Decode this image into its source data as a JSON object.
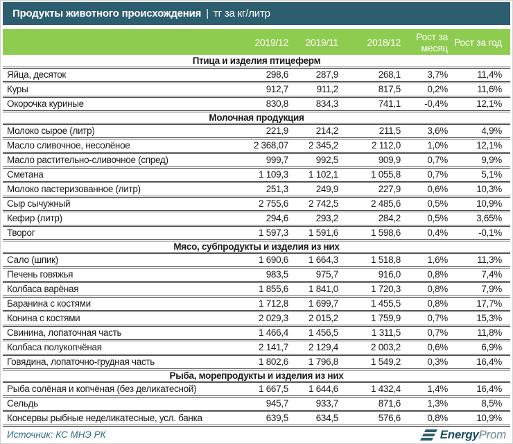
{
  "title": {
    "main": "Продукты животного происхождения",
    "separator": "|",
    "unit": "тг за кг/литр"
  },
  "colors": {
    "header_teal": "#2d5e6f",
    "header_green": "#8ecc4f",
    "row_border": "#4d4d4d",
    "source_text": "#2e6e88"
  },
  "footer": {
    "source": "Источник: КС МНЭ РК",
    "logo_icon": "energyprom-e-icon",
    "logo_bold": "Energy",
    "logo_light": "Prom"
  },
  "chart_data": {
    "type": "table",
    "title": "Продукты животного происхождения | тг за кг/литр",
    "columns": [
      "2019/12",
      "2019/11",
      "2018/12",
      "Рост за месяц",
      "Рост за год"
    ],
    "sections": [
      {
        "title": "Птица и изделия птицеферм",
        "rows": [
          {
            "name": "Яйца, десяток",
            "values": [
              "298,6",
              "287,9",
              "268,1",
              "3,7%",
              "11,4%"
            ]
          },
          {
            "name": "Куры",
            "values": [
              "912,7",
              "911,2",
              "817,5",
              "0,2%",
              "11,6%"
            ]
          },
          {
            "name": "Окорочка куриные",
            "values": [
              "830,8",
              "834,3",
              "741,1",
              "-0,4%",
              "12,1%"
            ]
          }
        ]
      },
      {
        "title": "Молочная продукция",
        "rows": [
          {
            "name": "Молоко сырое (литр)",
            "values": [
              "221,9",
              "214,2",
              "211,5",
              "3,6%",
              "4,9%"
            ]
          },
          {
            "name": "Масло сливочное, несолёное",
            "values": [
              "2 368,07",
              "2 345,2",
              "2 112,0",
              "1,0%",
              "12,1%"
            ]
          },
          {
            "name": "Масло растительно-сливочное (спред)",
            "values": [
              "999,7",
              "992,5",
              "909,9",
              "0,7%",
              "9,9%"
            ]
          },
          {
            "name": "Сметана",
            "values": [
              "1 109,3",
              "1 102,1",
              "1 055,8",
              "0,7%",
              "5,1%"
            ]
          },
          {
            "name": "Молоко пастеризованное (литр)",
            "values": [
              "251,3",
              "249,9",
              "227,9",
              "0,6%",
              "10,3%"
            ]
          },
          {
            "name": "Сыр сычужный",
            "values": [
              "2 755,6",
              "2 742,5",
              "2 485,6",
              "0,5%",
              "10,9%"
            ]
          },
          {
            "name": "Кефир (литр)",
            "values": [
              "294,6",
              "293,2",
              "284,2",
              "0,5%",
              "3,65%"
            ]
          },
          {
            "name": "Творог",
            "values": [
              "1 597,3",
              "1 591,6",
              "1 598,6",
              "0,4%",
              "-0,1%"
            ]
          }
        ]
      },
      {
        "title": "Мясо, субпродукты и изделия из них",
        "rows": [
          {
            "name": "Сало (шпик)",
            "values": [
              "1 690,6",
              "1 664,3",
              "1 518,8",
              "1,6%",
              "11,3%"
            ]
          },
          {
            "name": "Печень говяжья",
            "values": [
              "983,5",
              "975,7",
              "916,0",
              "0,8%",
              "7,4%"
            ]
          },
          {
            "name": "Колбаса варёная",
            "values": [
              "1 855,6",
              "1 841,0",
              "1 720,3",
              "0,8%",
              "7,9%"
            ]
          },
          {
            "name": "Баранина с костями",
            "values": [
              "1 712,8",
              "1 699,7",
              "1 455,5",
              "0,8%",
              "17,7%"
            ]
          },
          {
            "name": "Конина с костями",
            "values": [
              "2 029,3",
              "2 015,2",
              "1 759,9",
              "0,7%",
              "15,3%"
            ]
          },
          {
            "name": "Свинина, лопаточная часть",
            "values": [
              "1 466,4",
              "1 456,5",
              "1 311,5",
              "0,7%",
              "11,8%"
            ]
          },
          {
            "name": "Колбаса полукопчёная",
            "values": [
              "2 141,7",
              "2 129,4",
              "2 003,2",
              "0,6%",
              "6,9%"
            ]
          },
          {
            "name": "Говядина, лопаточно-грудная часть",
            "values": [
              "1 802,6",
              "1 796,8",
              "1 549,2",
              "0,3%",
              "16,4%"
            ]
          }
        ]
      },
      {
        "title": "Рыба, морепродукты и изделия из них",
        "rows": [
          {
            "name": "Рыба солёная и копчёная (без деликатесной)",
            "values": [
              "1 667,5",
              "1 644,6",
              "1 432,4",
              "1,4%",
              "16,4%"
            ]
          },
          {
            "name": "Сельдь",
            "values": [
              "945,7",
              "933,7",
              "871,6",
              "1,3%",
              "8,5%"
            ]
          },
          {
            "name": "Консервы рыбные неделикатесные, усл. банка",
            "values": [
              "639,5",
              "634,5",
              "576,6",
              "0,8%",
              "10,9%"
            ]
          }
        ]
      }
    ]
  }
}
